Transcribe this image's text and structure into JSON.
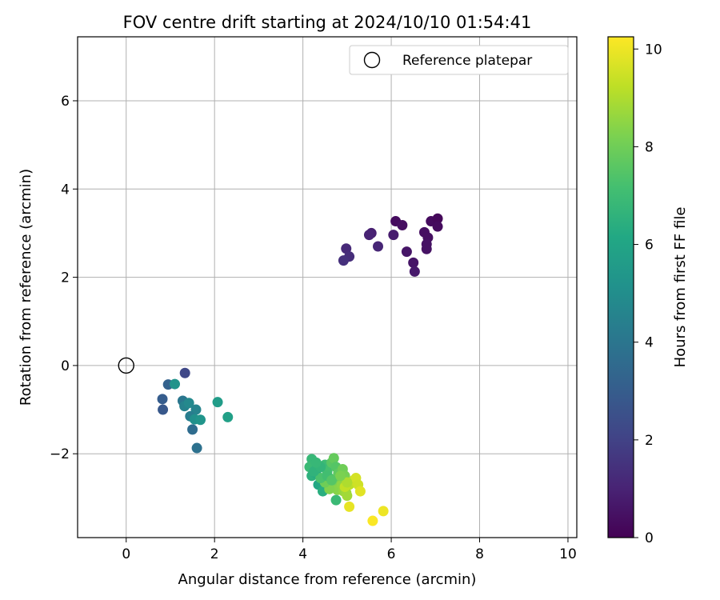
{
  "chart_data": {
    "type": "scatter",
    "title": "FOV centre drift starting at 2024/10/10 01:54:41",
    "xlabel": "Angular distance from reference (arcmin)",
    "ylabel": "Rotation from reference (arcmin)",
    "xlim": [
      -1.1,
      10.2
    ],
    "ylim": [
      -3.9,
      7.45
    ],
    "xticks": [
      0,
      2,
      4,
      6,
      8,
      10
    ],
    "yticks": [
      -2,
      0,
      2,
      4,
      6
    ],
    "xtick_labels": [
      "0",
      "2",
      "4",
      "6",
      "8",
      "10"
    ],
    "ytick_labels": [
      "−2",
      "0",
      "2",
      "4",
      "6"
    ],
    "grid": true,
    "legend": {
      "position": "top-right",
      "entries": [
        "Reference platepar"
      ]
    },
    "reference_point": {
      "name": "Reference platepar",
      "x": 0,
      "y": 0
    },
    "colorbar": {
      "label": "Hours from first FF file",
      "colormap": "viridis",
      "range": [
        0,
        10.25
      ],
      "ticks": [
        0,
        2,
        4,
        6,
        8,
        10
      ],
      "tick_labels": [
        "0",
        "2",
        "4",
        "6",
        "8",
        "10"
      ]
    },
    "series": [
      {
        "color_by": "Hours from first FF file",
        "points": [
          [
            6.1,
            3.27,
            0.3
          ],
          [
            6.25,
            3.18,
            0.4
          ],
          [
            6.9,
            3.27,
            0.3
          ],
          [
            7.05,
            3.33,
            0.2
          ],
          [
            7.05,
            3.15,
            0.3
          ],
          [
            6.75,
            3.02,
            0.4
          ],
          [
            6.83,
            2.9,
            0.4
          ],
          [
            6.8,
            2.75,
            0.5
          ],
          [
            6.8,
            2.64,
            0.5
          ],
          [
            6.35,
            2.58,
            0.6
          ],
          [
            6.5,
            2.33,
            0.6
          ],
          [
            6.53,
            2.13,
            0.7
          ],
          [
            6.05,
            2.96,
            0.8
          ],
          [
            5.55,
            3.0,
            0.9
          ],
          [
            5.5,
            2.96,
            1.0
          ],
          [
            5.7,
            2.7,
            1.1
          ],
          [
            4.98,
            2.65,
            1.2
          ],
          [
            5.05,
            2.47,
            1.3
          ],
          [
            4.92,
            2.38,
            1.4
          ],
          [
            1.33,
            -0.17,
            2.2
          ],
          [
            0.95,
            -0.43,
            3.2
          ],
          [
            0.82,
            -0.76,
            3.0
          ],
          [
            0.83,
            -1.0,
            2.8
          ],
          [
            1.1,
            -0.42,
            5.2
          ],
          [
            1.28,
            -0.8,
            4.0
          ],
          [
            1.32,
            -0.92,
            4.5
          ],
          [
            1.42,
            -0.85,
            4.8
          ],
          [
            1.58,
            -1.0,
            4.6
          ],
          [
            1.45,
            -1.15,
            4.3
          ],
          [
            1.55,
            -1.22,
            5.1
          ],
          [
            1.68,
            -1.23,
            5.3
          ],
          [
            1.5,
            -1.45,
            3.6
          ],
          [
            1.6,
            -1.87,
            3.8
          ],
          [
            2.07,
            -0.83,
            5.6
          ],
          [
            2.3,
            -1.17,
            5.8
          ],
          [
            4.2,
            -2.12,
            6.8
          ],
          [
            4.15,
            -2.3,
            6.9
          ],
          [
            4.2,
            -2.5,
            6.5
          ],
          [
            4.3,
            -2.45,
            6.3
          ],
          [
            4.35,
            -2.7,
            6.1
          ],
          [
            4.45,
            -2.85,
            6.4
          ],
          [
            4.5,
            -2.25,
            7.0
          ],
          [
            4.55,
            -2.4,
            7.2
          ],
          [
            4.6,
            -2.55,
            7.4
          ],
          [
            4.65,
            -2.2,
            7.6
          ],
          [
            4.7,
            -2.1,
            7.8
          ],
          [
            4.75,
            -2.3,
            7.5
          ],
          [
            4.8,
            -2.45,
            7.7
          ],
          [
            4.85,
            -2.6,
            7.9
          ],
          [
            4.9,
            -2.35,
            8.0
          ],
          [
            4.95,
            -2.5,
            8.1
          ],
          [
            4.72,
            -2.72,
            8.2
          ],
          [
            4.78,
            -2.82,
            8.4
          ],
          [
            4.88,
            -2.7,
            8.5
          ],
          [
            4.92,
            -2.85,
            8.6
          ],
          [
            4.6,
            -2.8,
            8.3
          ],
          [
            4.5,
            -2.65,
            8.0
          ],
          [
            4.4,
            -2.55,
            7.3
          ],
          [
            4.25,
            -2.4,
            6.6
          ],
          [
            4.75,
            -3.05,
            6.9
          ],
          [
            4.98,
            -2.88,
            8.7
          ],
          [
            5.0,
            -2.95,
            8.8
          ],
          [
            5.05,
            -2.7,
            9.2
          ],
          [
            5.15,
            -2.6,
            9.4
          ],
          [
            5.2,
            -2.55,
            9.6
          ],
          [
            5.25,
            -2.7,
            9.5
          ],
          [
            5.3,
            -2.85,
            9.8
          ],
          [
            4.95,
            -2.75,
            9.3
          ],
          [
            5.0,
            -2.65,
            9.0
          ],
          [
            5.05,
            -3.2,
            9.9
          ],
          [
            5.82,
            -3.3,
            10.0
          ],
          [
            5.58,
            -3.52,
            10.2
          ],
          [
            4.55,
            -2.5,
            7.1
          ],
          [
            4.65,
            -2.6,
            7.5
          ],
          [
            4.85,
            -2.5,
            8.2
          ],
          [
            4.4,
            -2.3,
            6.7
          ],
          [
            4.3,
            -2.2,
            6.8
          ]
        ]
      }
    ]
  }
}
